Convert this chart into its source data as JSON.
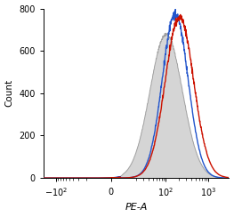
{
  "title": "",
  "xlabel": "PE-A",
  "ylabel": "Count",
  "ylim": [
    0,
    800
  ],
  "yticks": [
    0,
    200,
    400,
    600,
    800
  ],
  "gray_fill_color": "#c8c8c8",
  "gray_edge_color": "#888888",
  "blue_color": "#2255cc",
  "red_color": "#cc1100",
  "figsize": [
    2.63,
    2.44
  ],
  "dpi": 100,
  "linthresh": 10,
  "xlim_left": -200,
  "xlim_right": 3000
}
